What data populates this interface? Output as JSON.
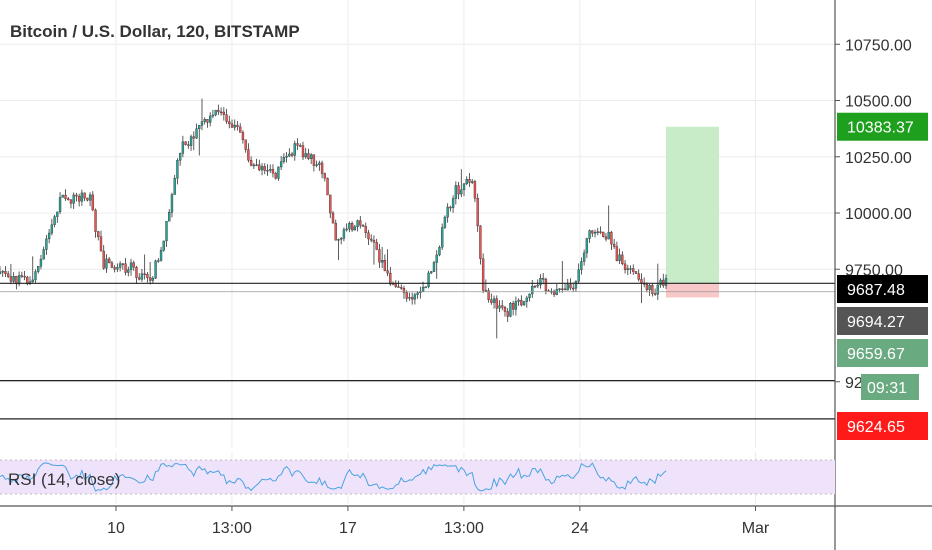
{
  "chart_data": {
    "type": "candlestick",
    "title": "Bitcoin / U.S. Dollar, 120, BITSTAMP",
    "y_range": [
      9200,
      10800
    ],
    "x_range": [
      6.5,
      31.7
    ],
    "y_ticks": [
      {
        "value": 10750,
        "label": "10750.00"
      },
      {
        "value": 10500,
        "label": "10500.00"
      },
      {
        "value": 10250,
        "label": "10250.00"
      },
      {
        "value": 10000,
        "label": "10000.00"
      },
      {
        "value": 9750,
        "label": "9750.00"
      },
      {
        "value": 9250,
        "label": "9250.00"
      }
    ],
    "x_ticks": [
      {
        "value": 10,
        "label": "10"
      },
      {
        "value": 13.5,
        "label": "13:00"
      },
      {
        "value": 17,
        "label": "17"
      },
      {
        "value": 20.5,
        "label": "13:00"
      },
      {
        "value": 24,
        "label": "24"
      },
      {
        "value": 29.3,
        "label": "Mar"
      }
    ],
    "anchors": [
      [
        6.5,
        9730
      ],
      [
        7.5,
        9690
      ],
      [
        8.3,
        10050
      ],
      [
        9.2,
        10080
      ],
      [
        9.6,
        9780
      ],
      [
        10.4,
        9760
      ],
      [
        11.0,
        9700
      ],
      [
        11.4,
        9830
      ],
      [
        11.9,
        10280
      ],
      [
        12.7,
        10400
      ],
      [
        13.2,
        10450
      ],
      [
        13.8,
        10330
      ],
      [
        14.1,
        10200
      ],
      [
        14.8,
        10170
      ],
      [
        15.4,
        10290
      ],
      [
        16.0,
        10230
      ],
      [
        16.3,
        10170
      ],
      [
        16.6,
        9880
      ],
      [
        17.2,
        9950
      ],
      [
        17.7,
        9890
      ],
      [
        18.3,
        9690
      ],
      [
        18.9,
        9600
      ],
      [
        19.5,
        9730
      ],
      [
        20.2,
        10100
      ],
      [
        20.8,
        10150
      ],
      [
        21.1,
        9640
      ],
      [
        21.7,
        9560
      ],
      [
        22.2,
        9590
      ],
      [
        22.7,
        9700
      ],
      [
        23.3,
        9640
      ],
      [
        23.9,
        9680
      ],
      [
        24.2,
        9900
      ],
      [
        24.8,
        9910
      ],
      [
        25.3,
        9760
      ],
      [
        25.8,
        9690
      ],
      [
        26.3,
        9660
      ],
      [
        26.6,
        9700
      ]
    ],
    "candle_count": 245,
    "up_color": "#26a69a",
    "down_color": "#ef5350",
    "horizontal_lines": [
      9687.48,
      9650,
      9255,
      9085
    ],
    "position_tool": {
      "x_start": 26.6,
      "x_end": 28.2,
      "entry": 9687.48,
      "target": 10383.37,
      "stop": 9624.65,
      "target_color": "#c8ecc8",
      "stop_color": "#f8c8c8"
    },
    "price_labels": [
      {
        "value": 10383.37,
        "label": "10383.37",
        "bg": "#1ea01e",
        "fg": "#ffffff"
      },
      {
        "value": 9687.48,
        "label": "9687.48",
        "bg": "#000000",
        "fg": "#ffffff"
      },
      {
        "value": 9694.27,
        "label": "9694.27",
        "bg": "#555555",
        "fg": "#ffffff"
      },
      {
        "value": 9659.67,
        "label": "9659.67",
        "bg": "#6aaa80",
        "fg": "#ffffff"
      },
      {
        "value": 9624.65,
        "label": "9624.65",
        "bg": "#ff1a1a",
        "fg": "#ffffff"
      }
    ],
    "countdown": "09:31",
    "rsi": {
      "label": "RSI (14, close)",
      "band_color": "#efe3fb",
      "line_color": "#4aa3df"
    },
    "grid": true
  }
}
